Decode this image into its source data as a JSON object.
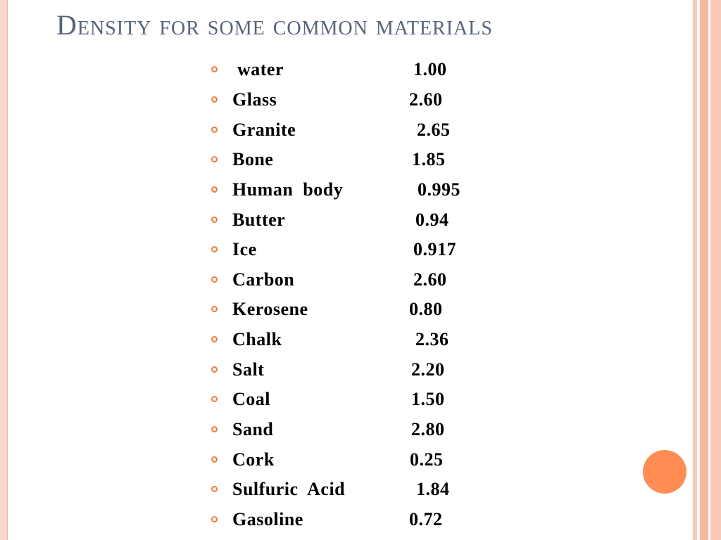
{
  "slide": {
    "title": "Density for some common materials"
  },
  "materials": [
    {
      "name": " water",
      "value": "1.00"
    },
    {
      "name": "Glass",
      "value": "2.60"
    },
    {
      "name": "Granite",
      "value": "2.65"
    },
    {
      "name": "Bone",
      "value": "1.85"
    },
    {
      "name": "Human  body",
      "value": "0.995"
    },
    {
      "name": "Butter",
      "value": "0.94"
    },
    {
      "name": "Ice",
      "value": "0.917"
    },
    {
      "name": "Carbon",
      "value": "2.60"
    },
    {
      "name": "Kerosene",
      "value": "0.80"
    },
    {
      "name": "Chalk",
      "value": "2.36"
    },
    {
      "name": "Salt",
      "value": "2.20"
    },
    {
      "name": "Coal",
      "value": "1.50"
    },
    {
      "name": "Sand",
      "value": "2.80"
    },
    {
      "name": "Cork",
      "value": "0.25"
    },
    {
      "name": "Sulfuric  Acid",
      "value": "1.84"
    },
    {
      "name": "Gasoline",
      "value": "0.72"
    }
  ],
  "colors": {
    "title": "#576479",
    "bullet": "#f07c3a",
    "accent_circle": "#ff8d54",
    "border": "#f8c9b6"
  }
}
